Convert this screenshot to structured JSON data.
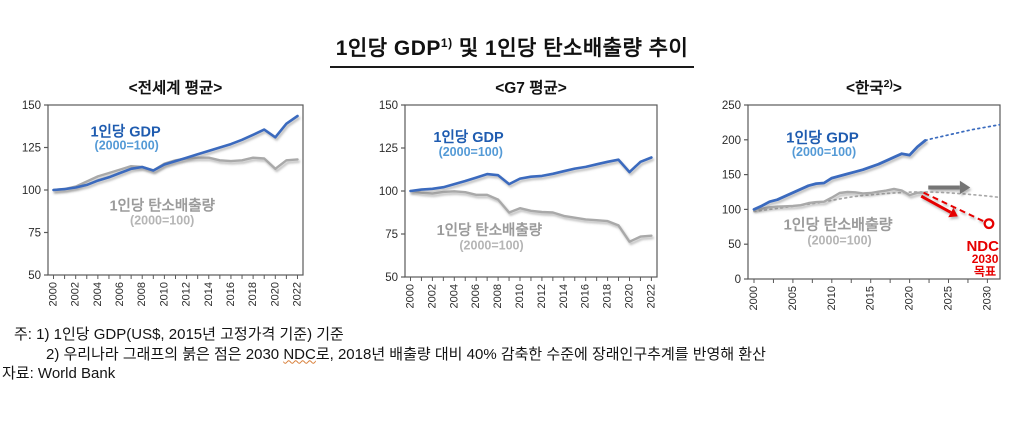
{
  "title": {
    "part1": "1인당 GDP",
    "sup": "1)",
    "part2": " 및 1인당 탄소배출량 추이"
  },
  "footnotes": {
    "line1": "주: 1) 1인당 GDP(US$, 2015년 고정가격 기준) 기준",
    "line2_pre": "2) 우리나라 그래프의 붉은 점은 2030 ",
    "line2_ndc": "NDC",
    "line2_post": "로, 2018년 배출량 대비 40% 감축한 수준에 장래인구추계를 반영해 환산",
    "source": "자료: World Bank"
  },
  "colors": {
    "gdp_line": "#3a6bbe",
    "gdp_label": "#1f5cb0",
    "gdp_sublabel": "#549ad6",
    "co2_line": "#a9a9a9",
    "co2_label": "#9b9b9b",
    "co2_sublabel": "#b5b5b5",
    "projection_arrow": "#757575",
    "ndc_red": "#e60000",
    "axis": "#595959",
    "tick_text": "#2b2b2b"
  },
  "chart_data": [
    {
      "id": "world",
      "type": "line",
      "title": "<전세계 평균>",
      "xlabel": "",
      "ylabel": "",
      "ylim": [
        50,
        150
      ],
      "yticks": [
        150,
        125,
        100,
        75,
        50
      ],
      "xticks": [
        2000,
        2002,
        2004,
        2006,
        2008,
        2010,
        2012,
        2014,
        2016,
        2018,
        2020,
        2022
      ],
      "series": [
        {
          "id": "world-co2-line",
          "name": "1인당 탄소배출량 (2000=100)",
          "color": "co2_line",
          "style": "solid",
          "width": 2.4,
          "x_start": 2000,
          "values": [
            100,
            100.5,
            102,
            105,
            108,
            110,
            112,
            114,
            113.5,
            111.5,
            115.5,
            117.5,
            118.5,
            119,
            119,
            117.5,
            117,
            117.5,
            119,
            118.5,
            112.5,
            117.5,
            118
          ]
        },
        {
          "id": "world-gdp-line",
          "name": "1인당 GDP (2000=100)",
          "color": "gdp_line",
          "style": "solid",
          "width": 2.6,
          "x_start": 2000,
          "values": [
            100,
            100.5,
            101.5,
            103,
            105.5,
            107.5,
            110,
            112.5,
            113.5,
            111.5,
            115,
            117,
            119,
            121,
            123,
            125,
            127,
            129.5,
            132.5,
            135.5,
            131,
            139,
            143.5
          ]
        }
      ],
      "annotations": [
        {
          "id": "world-gdp-label",
          "type": "text",
          "text": "1인당 GDP",
          "x": 2006.5,
          "y": 134.5,
          "size": 14.5,
          "color": "gdp_label"
        },
        {
          "id": "world-gdp-sublabel",
          "type": "text",
          "text": "(2000=100)",
          "x": 2006.6,
          "y": 126.5,
          "size": 12.5,
          "color": "gdp_sublabel"
        },
        {
          "id": "world-co2-label",
          "type": "text",
          "text": "1인당 탄소배출량",
          "x": 2009.8,
          "y": 91,
          "size": 14.5,
          "color": "co2_label"
        },
        {
          "id": "world-co2-sublabel",
          "type": "text",
          "text": "(2000=100)",
          "x": 2009.8,
          "y": 82.5,
          "size": 12.5,
          "color": "co2_sublabel"
        }
      ]
    },
    {
      "id": "g7",
      "type": "line",
      "title": "<G7 평균>",
      "xlabel": "",
      "ylabel": "",
      "ylim": [
        50,
        150
      ],
      "yticks": [
        150,
        125,
        100,
        75,
        50
      ],
      "xticks": [
        2000,
        2002,
        2004,
        2006,
        2008,
        2010,
        2012,
        2014,
        2016,
        2018,
        2020,
        2022
      ],
      "series": [
        {
          "id": "g7-co2-line",
          "name": "1인당 탄소배출량 (2000=100)",
          "color": "co2_line",
          "style": "solid",
          "width": 2.4,
          "x_start": 2000,
          "values": [
            100,
            99,
            98.5,
            99.5,
            99.8,
            99.3,
            97.8,
            97.8,
            95,
            87.5,
            90,
            88.5,
            87.8,
            87.5,
            85.5,
            84.5,
            83.5,
            83,
            82.5,
            80,
            70.5,
            73.5,
            74
          ]
        },
        {
          "id": "g7-gdp-line",
          "name": "1인당 GDP (2000=100)",
          "color": "gdp_line",
          "style": "solid",
          "width": 2.6,
          "x_start": 2000,
          "values": [
            100,
            100.8,
            101.3,
            102.2,
            104,
            105.8,
            107.8,
            109.8,
            109.2,
            104,
            107.2,
            108.3,
            108.8,
            110,
            111.5,
            113,
            114,
            115.5,
            117,
            118.2,
            111,
            117,
            119.5
          ]
        }
      ],
      "annotations": [
        {
          "id": "g7-gdp-label",
          "type": "text",
          "text": "1인당 GDP",
          "x": 2005.3,
          "y": 131.5,
          "size": 14.5,
          "color": "gdp_label"
        },
        {
          "id": "g7-gdp-sublabel",
          "type": "text",
          "text": "(2000=100)",
          "x": 2005.5,
          "y": 123,
          "size": 12.5,
          "color": "gdp_sublabel"
        },
        {
          "id": "g7-co2-label",
          "type": "text",
          "text": "1인당 탄소배출량",
          "x": 2007.2,
          "y": 77.5,
          "size": 14.5,
          "color": "co2_label"
        },
        {
          "id": "g7-co2-sublabel",
          "type": "text",
          "text": "(2000=100)",
          "x": 2007.4,
          "y": 68.5,
          "size": 12.5,
          "color": "co2_sublabel"
        }
      ]
    },
    {
      "id": "korea",
      "type": "line",
      "title": "<한국",
      "title_sup": "2)",
      "title_end": ">",
      "xlabel": "",
      "ylabel": "",
      "ylim": [
        0,
        250
      ],
      "yticks": [
        250,
        200,
        150,
        100,
        50,
        0
      ],
      "xticks": [
        2000,
        2005,
        2010,
        2015,
        2020,
        2025,
        2030
      ],
      "series": [
        {
          "id": "korea-co2-projection-line",
          "name": "1인당 탄소배출량 전망(점선)",
          "color": "co2_line",
          "style": "dotted",
          "width": 1.7,
          "x_start": 2000,
          "values": [
            97,
            98.5,
            100,
            101.5,
            103,
            104.5,
            106,
            107.5,
            109,
            111,
            113,
            115,
            117,
            118.5,
            120,
            121,
            122,
            122.8,
            123.5,
            124.2,
            124.8,
            125,
            125,
            124.8,
            124.4,
            123.8,
            123,
            122.2,
            121.3,
            120.3,
            119.2,
            118,
            117
          ]
        },
        {
          "id": "korea-gdp-projection-line",
          "name": "1인당 GDP 전망(점선)",
          "color": "gdp_line",
          "style": "dotted",
          "width": 1.7,
          "x_start": 2022,
          "values": [
            199,
            202,
            204.5,
            207,
            209.5,
            212,
            214.5,
            216.5,
            218.5,
            220.5,
            222.5
          ]
        },
        {
          "id": "korea-co2-line",
          "name": "1인당 탄소배출량 (2000=100)",
          "color": "co2_line",
          "style": "solid",
          "width": 2.4,
          "x_start": 2000,
          "values": [
            100,
            101,
            103,
            104,
            104.5,
            105,
            106,
            109,
            110.5,
            111,
            117,
            123.5,
            125,
            124.5,
            123,
            123.5,
            125.5,
            127,
            129.5,
            127,
            120.5,
            124,
            124
          ]
        },
        {
          "id": "korea-gdp-line",
          "name": "1인당 GDP (2000=100)",
          "color": "gdp_line",
          "style": "solid",
          "width": 2.8,
          "x_start": 2000,
          "values": [
            100,
            105,
            111,
            114,
            119,
            124,
            129,
            134,
            137,
            138,
            145,
            148,
            151,
            154,
            157,
            161,
            165,
            170,
            175,
            180,
            178,
            190,
            199
          ]
        }
      ],
      "annotations": [
        {
          "id": "korea-gdp-label",
          "type": "text",
          "text": "1인당 GDP",
          "x": 2008.8,
          "y": 204,
          "size": 15,
          "color": "gdp_label"
        },
        {
          "id": "korea-gdp-sublabel",
          "type": "text",
          "text": "(2000=100)",
          "x": 2009,
          "y": 183,
          "size": 12.5,
          "color": "gdp_sublabel"
        },
        {
          "id": "korea-co2-label",
          "type": "text",
          "text": "1인당 탄소배출량",
          "x": 2010.8,
          "y": 79,
          "size": 15,
          "color": "co2_label"
        },
        {
          "id": "korea-co2-sublabel",
          "type": "text",
          "text": "(2000=100)",
          "x": 2011,
          "y": 56,
          "size": 12.5,
          "color": "co2_sublabel"
        },
        {
          "id": "co2-projection-arrow",
          "type": "arrow",
          "x": 2022.4,
          "y": 131.5,
          "x2": 2027.8,
          "y2": 131.5,
          "width": 4,
          "color": "projection_arrow"
        },
        {
          "id": "ndc-path-arrow",
          "type": "arrow",
          "x": 2021.5,
          "y": 119,
          "x2": 2026.2,
          "y2": 90,
          "width": 3,
          "color": "ndc_red"
        },
        {
          "id": "ndc-dashed-line",
          "type": "dashed-line",
          "x": 2021.8,
          "y": 124,
          "x2": 2029.5,
          "y2": 83,
          "width": 2,
          "color": "ndc_red"
        },
        {
          "id": "ndc-target-marker",
          "type": "circle",
          "x": 2030.2,
          "y": 79.5,
          "color": "ndc_red"
        },
        {
          "id": "ndc-label",
          "type": "text",
          "text": "NDC",
          "x": 2029.4,
          "y": 48,
          "size": 15,
          "color": "ndc_red"
        },
        {
          "id": "ndc-year-label",
          "type": "text",
          "text": "2030",
          "x": 2029.7,
          "y": 29,
          "size": 12,
          "color": "ndc_red"
        },
        {
          "id": "ndc-goal-label",
          "type": "text",
          "text": "목표",
          "x": 2029.7,
          "y": 11,
          "size": 12,
          "color": "ndc_red"
        }
      ]
    }
  ]
}
